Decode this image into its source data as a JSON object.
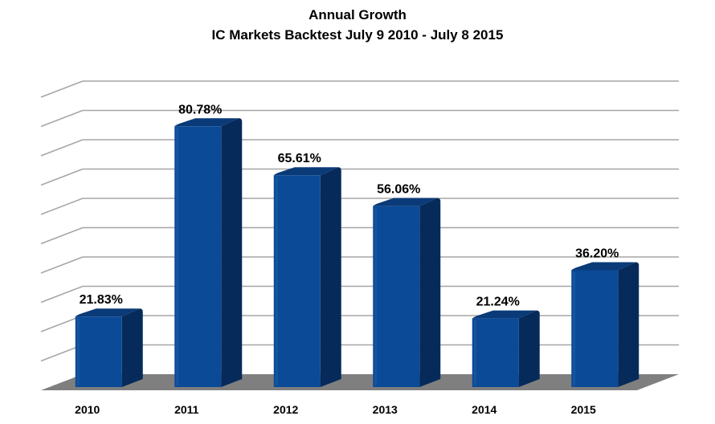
{
  "chart_data": {
    "type": "bar",
    "title": "Annual Growth",
    "subtitle": "IC Markets Backtest July 9 2010 - July 8 2015",
    "categories": [
      "2010",
      "2011",
      "2012",
      "2013",
      "2014",
      "2015"
    ],
    "values": [
      21.83,
      80.78,
      65.61,
      56.06,
      21.24,
      36.2
    ],
    "value_labels": [
      "21.83%",
      "80.78%",
      "65.61%",
      "56.06%",
      "21.24%",
      "36.20%"
    ],
    "xlabel": "",
    "ylabel": "",
    "ylim": [
      0,
      100
    ],
    "y_ticks": [
      0,
      10,
      20,
      30,
      40,
      50,
      60,
      70,
      80,
      90,
      100
    ],
    "y_tick_labels_shown": false,
    "grid": true,
    "style_3d": true,
    "colors": {
      "bar_front": "#0B4A96",
      "bar_side": "#062B5A",
      "bar_top": "#0A3A78",
      "floor": "#7F7F7F",
      "gridline": "#A6A6A6"
    }
  }
}
